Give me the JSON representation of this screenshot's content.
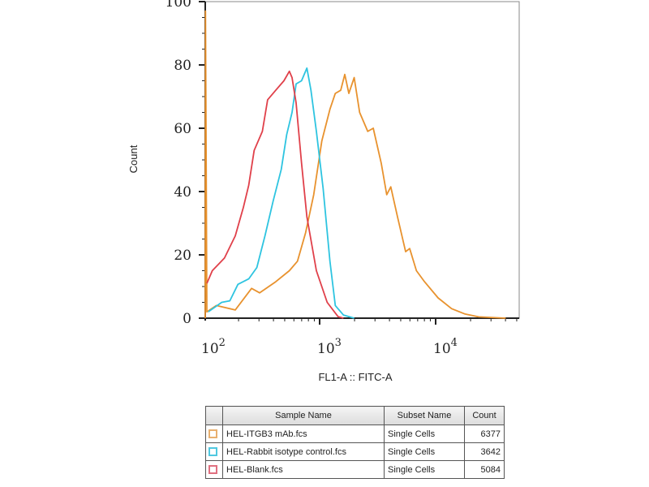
{
  "chart_data": {
    "type": "line",
    "title": "",
    "xlabel": "FL1-A :: FITC-A",
    "ylabel": "Count",
    "xscale": "log",
    "xlim_log10": [
      1.986,
      4.72
    ],
    "ylim": [
      0,
      100
    ],
    "xticks": [
      {
        "base": "10",
        "exp": "2",
        "log10": 2
      },
      {
        "base": "10",
        "exp": "3",
        "log10": 3
      },
      {
        "base": "10",
        "exp": "4",
        "log10": 4
      }
    ],
    "yticks": [
      "0",
      "20",
      "40",
      "60",
      "80",
      "100"
    ],
    "series": [
      {
        "name": "HEL-ITGB3 mAb.fcs",
        "color": "#e8922e",
        "x_log10": [
          2.0,
          2.016,
          2.028,
          2.11,
          2.273,
          2.413,
          2.483,
          2.622,
          2.739,
          2.809,
          2.879,
          2.949,
          3.019,
          3.089,
          3.135,
          3.182,
          3.217,
          3.252,
          3.298,
          3.345,
          3.415,
          3.462,
          3.531,
          3.578,
          3.613,
          3.671,
          3.741,
          3.776,
          3.834,
          3.904,
          4.021,
          4.138,
          4.254,
          4.371,
          4.604
        ],
        "y": [
          0,
          97,
          2,
          4,
          2.6,
          9.4,
          8,
          11.5,
          15,
          18,
          27,
          39,
          56,
          66,
          71,
          72,
          77,
          71,
          76,
          65,
          59,
          60,
          49,
          39,
          41.5,
          32,
          21,
          22,
          15,
          11.5,
          6.4,
          3,
          1.3,
          0.4,
          0
        ]
      },
      {
        "name": "HEL-Rabbit isotype control.fcs",
        "color": "#2ec4e0",
        "x_log10": [
          2.04,
          2.156,
          2.226,
          2.296,
          2.389,
          2.459,
          2.529,
          2.599,
          2.669,
          2.716,
          2.762,
          2.797,
          2.844,
          2.89,
          2.925,
          2.972,
          3.03,
          3.089,
          3.135,
          3.205,
          3.298
        ],
        "y": [
          2,
          5,
          5.5,
          10.7,
          12.4,
          16,
          26,
          37,
          47,
          58,
          65,
          74,
          75,
          79,
          72,
          59,
          41,
          18,
          4,
          1,
          0
        ]
      },
      {
        "name": "HEL-Blank.fcs",
        "color": "#e0404a",
        "x_log10": [
          2.028,
          2.075,
          2.18,
          2.273,
          2.343,
          2.389,
          2.436,
          2.506,
          2.552,
          2.622,
          2.692,
          2.739,
          2.762,
          2.797,
          2.844,
          2.89,
          2.972,
          3.065,
          3.159,
          3.205
        ],
        "y": [
          11,
          15,
          19,
          26,
          35,
          42,
          53,
          59,
          69,
          72,
          75,
          78,
          76,
          68,
          49,
          32,
          15,
          5,
          0.5,
          0
        ]
      }
    ],
    "legend": {
      "placement": "bottom",
      "headers": [
        "Sample Name",
        "Subset Name",
        "Count"
      ],
      "rows": [
        {
          "sample": "HEL-ITGB3 mAb.fcs",
          "subset": "Single Cells",
          "count": "6377",
          "color": "#e8922e"
        },
        {
          "sample": "HEL-Rabbit isotype control.fcs",
          "subset": "Single Cells",
          "count": "3642",
          "color": "#2ec4e0"
        },
        {
          "sample": "HEL-Blank.fcs",
          "subset": "Single Cells",
          "count": "5084",
          "color": "#e0404a"
        }
      ]
    }
  }
}
